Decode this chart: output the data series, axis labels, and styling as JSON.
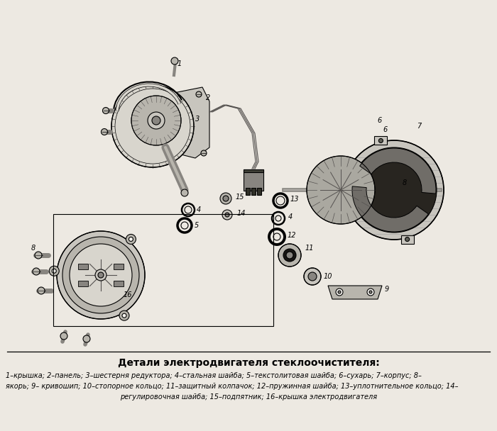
{
  "title": "Детали электродвигателя стеклоочистителя:",
  "caption_line1": "1–крышка; 2–панель; 3–шестерня редуктора; 4–стальная шайба; 5–текстолитовая шайба; 6–сухарь; 7–корпус; 8–",
  "caption_line2": "якорь; 9– кривошип; 10–стопорное кольцо; 11–защитный колпачок; 12–пружинная шайба; 13–уплотнительное кольцо; 14–",
  "caption_line3": "регулировочная шайба; 15–подпятник; 16–крышка электродвигателя",
  "bg_color": "#ede9e2",
  "fig_width": 7.0,
  "fig_height": 6.08,
  "dpi": 100
}
